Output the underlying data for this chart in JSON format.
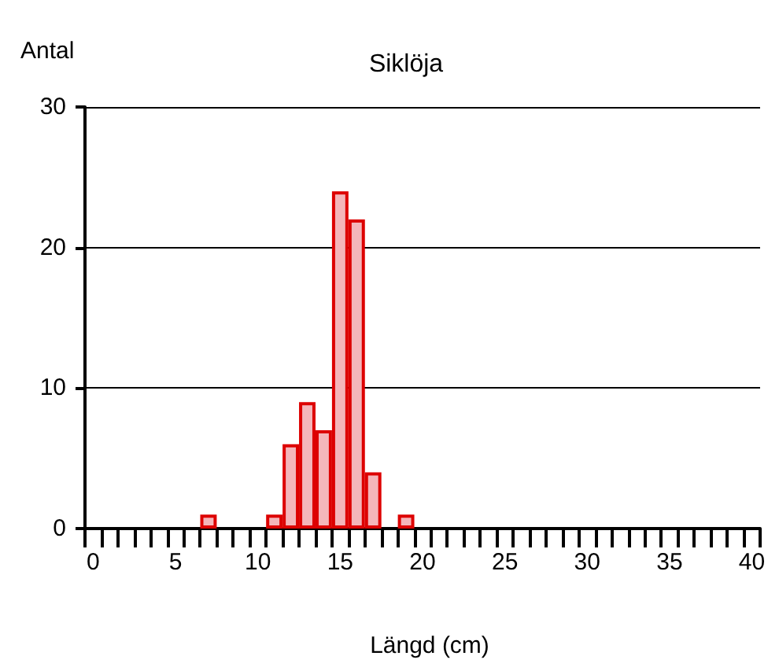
{
  "chart_data": {
    "type": "bar",
    "title": "Siklöja",
    "xlabel": "Längd (cm)",
    "ylabel": "Antal",
    "categories": [
      "0",
      null,
      null,
      null,
      null,
      "5",
      null,
      null,
      null,
      null,
      "10",
      null,
      null,
      null,
      null,
      "15",
      null,
      null,
      null,
      null,
      "20",
      null,
      null,
      null,
      null,
      "25",
      null,
      null,
      null,
      null,
      "30",
      null,
      null,
      null,
      null,
      "35",
      null,
      null,
      null,
      null,
      "40"
    ],
    "values": [
      0,
      0,
      0,
      0,
      0,
      0,
      0,
      1,
      0,
      0,
      0,
      1,
      6,
      9,
      7,
      24,
      22,
      4,
      0,
      1,
      0,
      0,
      0,
      0,
      0,
      0,
      0,
      0,
      0,
      0,
      0,
      0,
      0,
      0,
      0,
      0,
      0,
      0,
      0,
      0,
      0
    ],
    "color": "#f4b6ba",
    "ylim": [
      0,
      30
    ],
    "yticks": [
      0,
      10,
      20,
      30
    ],
    "grid": "y"
  }
}
